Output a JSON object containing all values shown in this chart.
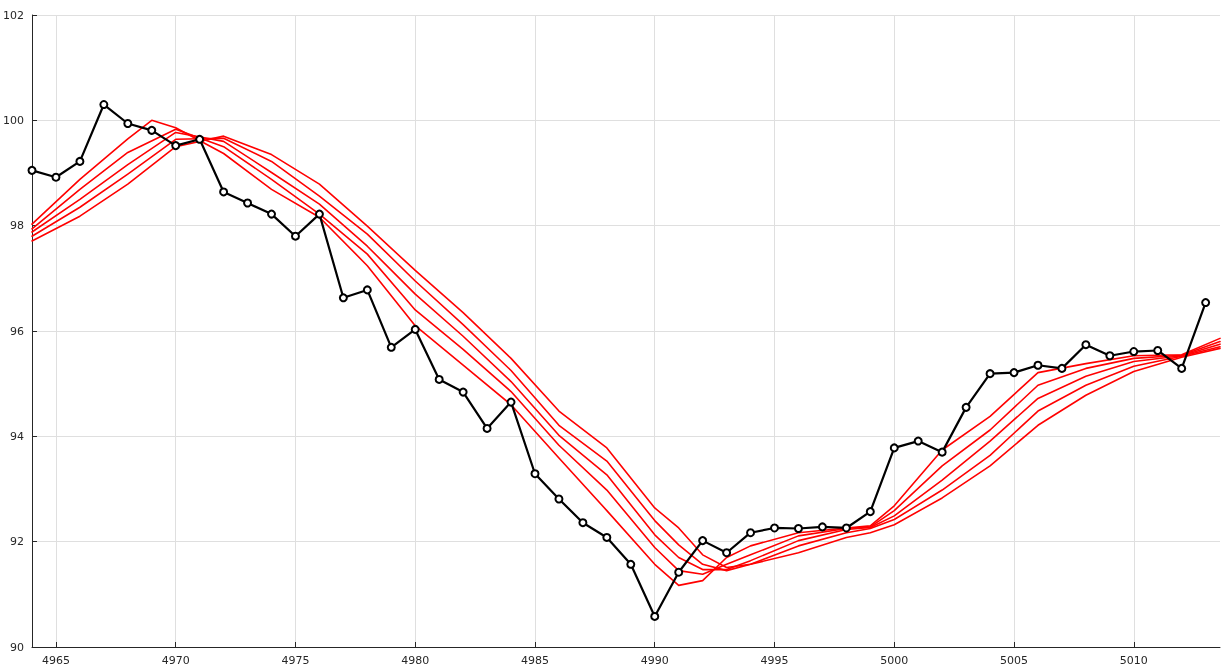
{
  "chart_data": {
    "type": "line",
    "x": [
      4964,
      4965,
      4966,
      4967,
      4968,
      4969,
      4970,
      4971,
      4972,
      4973,
      4974,
      4975,
      4976,
      4977,
      4978,
      4979,
      4980,
      4981,
      4982,
      4983,
      4984,
      4985,
      4986,
      4987,
      4988,
      4989,
      4990,
      4991,
      4992,
      4993,
      4994,
      4995,
      4996,
      4997,
      4998,
      4999,
      5000,
      5001,
      5002,
      5003,
      5004,
      5005,
      5006,
      5007,
      5008,
      5009,
      5010,
      5011,
      5012,
      5013
    ],
    "series": [
      {
        "color": "#000000",
        "marker": "circle",
        "values": [
          99.05,
          98.92,
          99.22,
          100.3,
          99.94,
          99.81,
          99.52,
          99.64,
          98.64,
          98.43,
          98.22,
          97.8,
          98.22,
          96.63,
          96.78,
          95.69,
          96.03,
          95.08,
          94.84,
          94.15,
          94.65,
          93.29,
          92.81,
          92.36,
          92.08,
          91.57,
          90.58,
          91.42,
          92.02,
          91.79,
          92.17,
          92.26,
          92.25,
          92.28,
          92.26,
          92.57,
          93.78,
          93.91,
          93.7,
          94.55,
          95.19,
          95.21,
          95.35,
          95.29,
          95.74,
          95.53,
          95.61,
          95.63,
          95.29,
          96.54
        ]
      },
      {
        "color": "#ff0000",
        "marker": "none",
        "x": [
          4964,
          4966,
          4968,
          4969,
          4970,
          4972,
          4974,
          4976,
          4978,
          4980,
          4982,
          4984,
          4986,
          4988,
          4990,
          4991,
          4992,
          4993,
          4994,
          4996,
          4998,
          4999,
          5000,
          5002,
          5004,
          5006,
          5008,
          5010,
          5012,
          5013.6
        ],
        "values": [
          98.03,
          98.88,
          99.65,
          100.0,
          99.86,
          99.37,
          98.69,
          98.16,
          97.24,
          96.1,
          95.35,
          94.6,
          93.59,
          92.59,
          91.57,
          91.17,
          91.26,
          91.7,
          91.92,
          92.17,
          92.26,
          92.3,
          92.68,
          93.74,
          94.38,
          95.21,
          95.38,
          95.53,
          95.55,
          95.86
        ]
      },
      {
        "color": "#ff0000",
        "marker": "none",
        "x": [
          4964,
          4966,
          4968,
          4970,
          4972,
          4974,
          4976,
          4978,
          4980,
          4982,
          4984,
          4986,
          4988,
          4990,
          4991,
          4992,
          4993,
          4994,
          4996,
          4998,
          4999,
          5000,
          5002,
          5004,
          5006,
          5008,
          5010,
          5012,
          5013.6
        ],
        "values": [
          97.94,
          98.69,
          99.39,
          99.83,
          99.5,
          98.88,
          98.22,
          97.46,
          96.4,
          95.65,
          94.85,
          93.83,
          92.98,
          91.89,
          91.45,
          91.38,
          91.57,
          91.75,
          92.11,
          92.25,
          92.28,
          92.59,
          93.44,
          94.12,
          94.97,
          95.29,
          95.48,
          95.54,
          95.8
        ]
      },
      {
        "color": "#ff0000",
        "marker": "none",
        "x": [
          4964,
          4966,
          4968,
          4970,
          4972,
          4974,
          4976,
          4978,
          4980,
          4982,
          4984,
          4986,
          4988,
          4990,
          4991,
          4992,
          4993,
          4994,
          4996,
          4998,
          4999,
          5000,
          5002,
          5004,
          5006,
          5008,
          5010,
          5012,
          5013.6
        ],
        "values": [
          97.88,
          98.5,
          99.16,
          99.77,
          99.6,
          99.01,
          98.41,
          97.61,
          96.7,
          95.9,
          95.04,
          94.02,
          93.27,
          92.13,
          91.7,
          91.47,
          91.47,
          91.64,
          92.02,
          92.23,
          92.27,
          92.49,
          93.17,
          93.91,
          94.72,
          95.14,
          95.42,
          95.53,
          95.75
        ]
      },
      {
        "color": "#ff0000",
        "marker": "none",
        "x": [
          4964,
          4966,
          4968,
          4970,
          4972,
          4974,
          4976,
          4978,
          4980,
          4982,
          4984,
          4986,
          4988,
          4990,
          4991,
          4992,
          4993,
          4994,
          4996,
          4998,
          4999,
          5000,
          5002,
          5004,
          5006,
          5008,
          5010,
          5012,
          5013.6
        ],
        "values": [
          97.8,
          98.35,
          98.98,
          99.64,
          99.66,
          99.22,
          98.56,
          97.84,
          96.95,
          96.12,
          95.25,
          94.21,
          93.53,
          92.4,
          91.94,
          91.57,
          91.45,
          91.57,
          91.92,
          92.17,
          92.25,
          92.42,
          92.98,
          93.64,
          94.48,
          94.97,
          95.33,
          95.52,
          95.7
        ]
      },
      {
        "color": "#ff0000",
        "marker": "none",
        "x": [
          4964,
          4966,
          4968,
          4970,
          4972,
          4974,
          4976,
          4978,
          4980,
          4982,
          4984,
          4986,
          4988,
          4990,
          4991,
          4992,
          4993,
          4994,
          4996,
          4998,
          4999,
          5000,
          5002,
          5004,
          5006,
          5008,
          5010,
          5012,
          5013.6
        ],
        "values": [
          97.71,
          98.18,
          98.79,
          99.5,
          99.7,
          99.35,
          98.79,
          97.99,
          97.15,
          96.35,
          95.48,
          94.48,
          93.78,
          92.64,
          92.26,
          91.75,
          91.51,
          91.57,
          91.79,
          92.08,
          92.17,
          92.32,
          92.83,
          93.44,
          94.21,
          94.78,
          95.23,
          95.5,
          95.67
        ]
      }
    ],
    "xlim": [
      4964,
      5013.6
    ],
    "xticks": [
      4965,
      4970,
      4975,
      4980,
      4985,
      4990,
      4995,
      5000,
      5005,
      5010
    ],
    "ylim": [
      90,
      102
    ],
    "yticks": [
      90,
      92,
      94,
      96,
      98,
      100,
      102
    ],
    "grid": true,
    "line_style": "solid"
  }
}
